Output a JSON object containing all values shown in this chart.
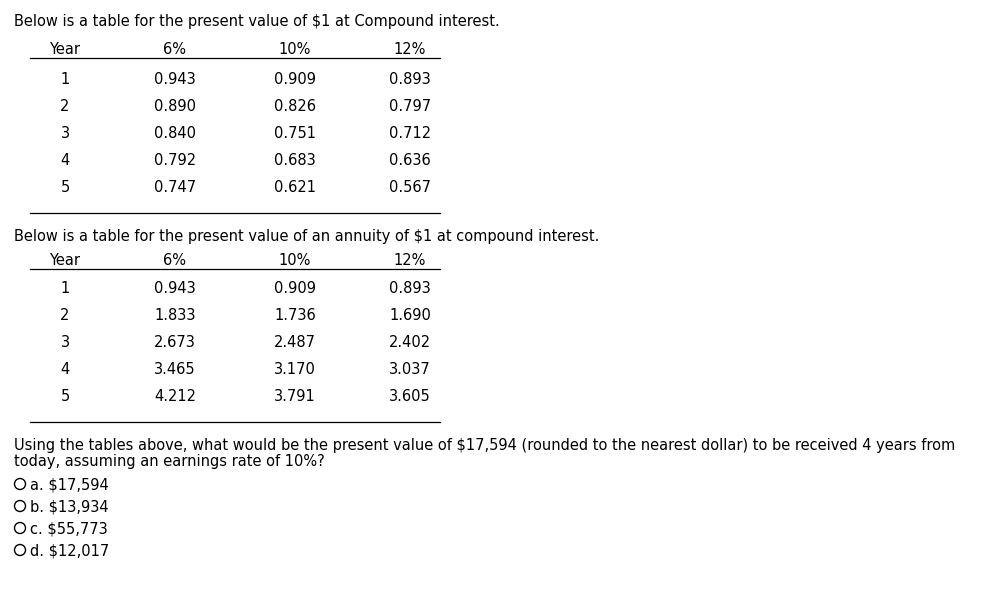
{
  "bg_color": "#ffffff",
  "text_color": "#000000",
  "title1": "Below is a table for the present value of $1 at Compound interest.",
  "title2": "Below is a table for the present value of an annuity of $1 at compound interest.",
  "question_line1": "Using the tables above, what would be the present value of $17,594 (rounded to the nearest dollar) to be received 4 years from",
  "question_line2": "today, assuming an earnings rate of 10%?",
  "table1_headers": [
    "Year",
    "6%",
    "10%",
    "12%"
  ],
  "table1_data": [
    [
      "1",
      "0.943",
      "0.909",
      "0.893"
    ],
    [
      "2",
      "0.890",
      "0.826",
      "0.797"
    ],
    [
      "3",
      "0.840",
      "0.751",
      "0.712"
    ],
    [
      "4",
      "0.792",
      "0.683",
      "0.636"
    ],
    [
      "5",
      "0.747",
      "0.621",
      "0.567"
    ]
  ],
  "table2_headers": [
    "Year",
    "6%",
    "10%",
    "12%"
  ],
  "table2_data": [
    [
      "1",
      "0.943",
      "0.909",
      "0.893"
    ],
    [
      "2",
      "1.833",
      "1.736",
      "1.690"
    ],
    [
      "3",
      "2.673",
      "2.487",
      "2.402"
    ],
    [
      "4",
      "3.465",
      "3.170",
      "3.037"
    ],
    [
      "5",
      "4.212",
      "3.791",
      "3.605"
    ]
  ],
  "options": [
    "a. $17,594",
    "b. $13,934",
    "c. $55,773",
    "d. $12,017"
  ],
  "font_size": 10.5,
  "fig_width": 9.89,
  "fig_height": 6.14,
  "dpi": 100
}
